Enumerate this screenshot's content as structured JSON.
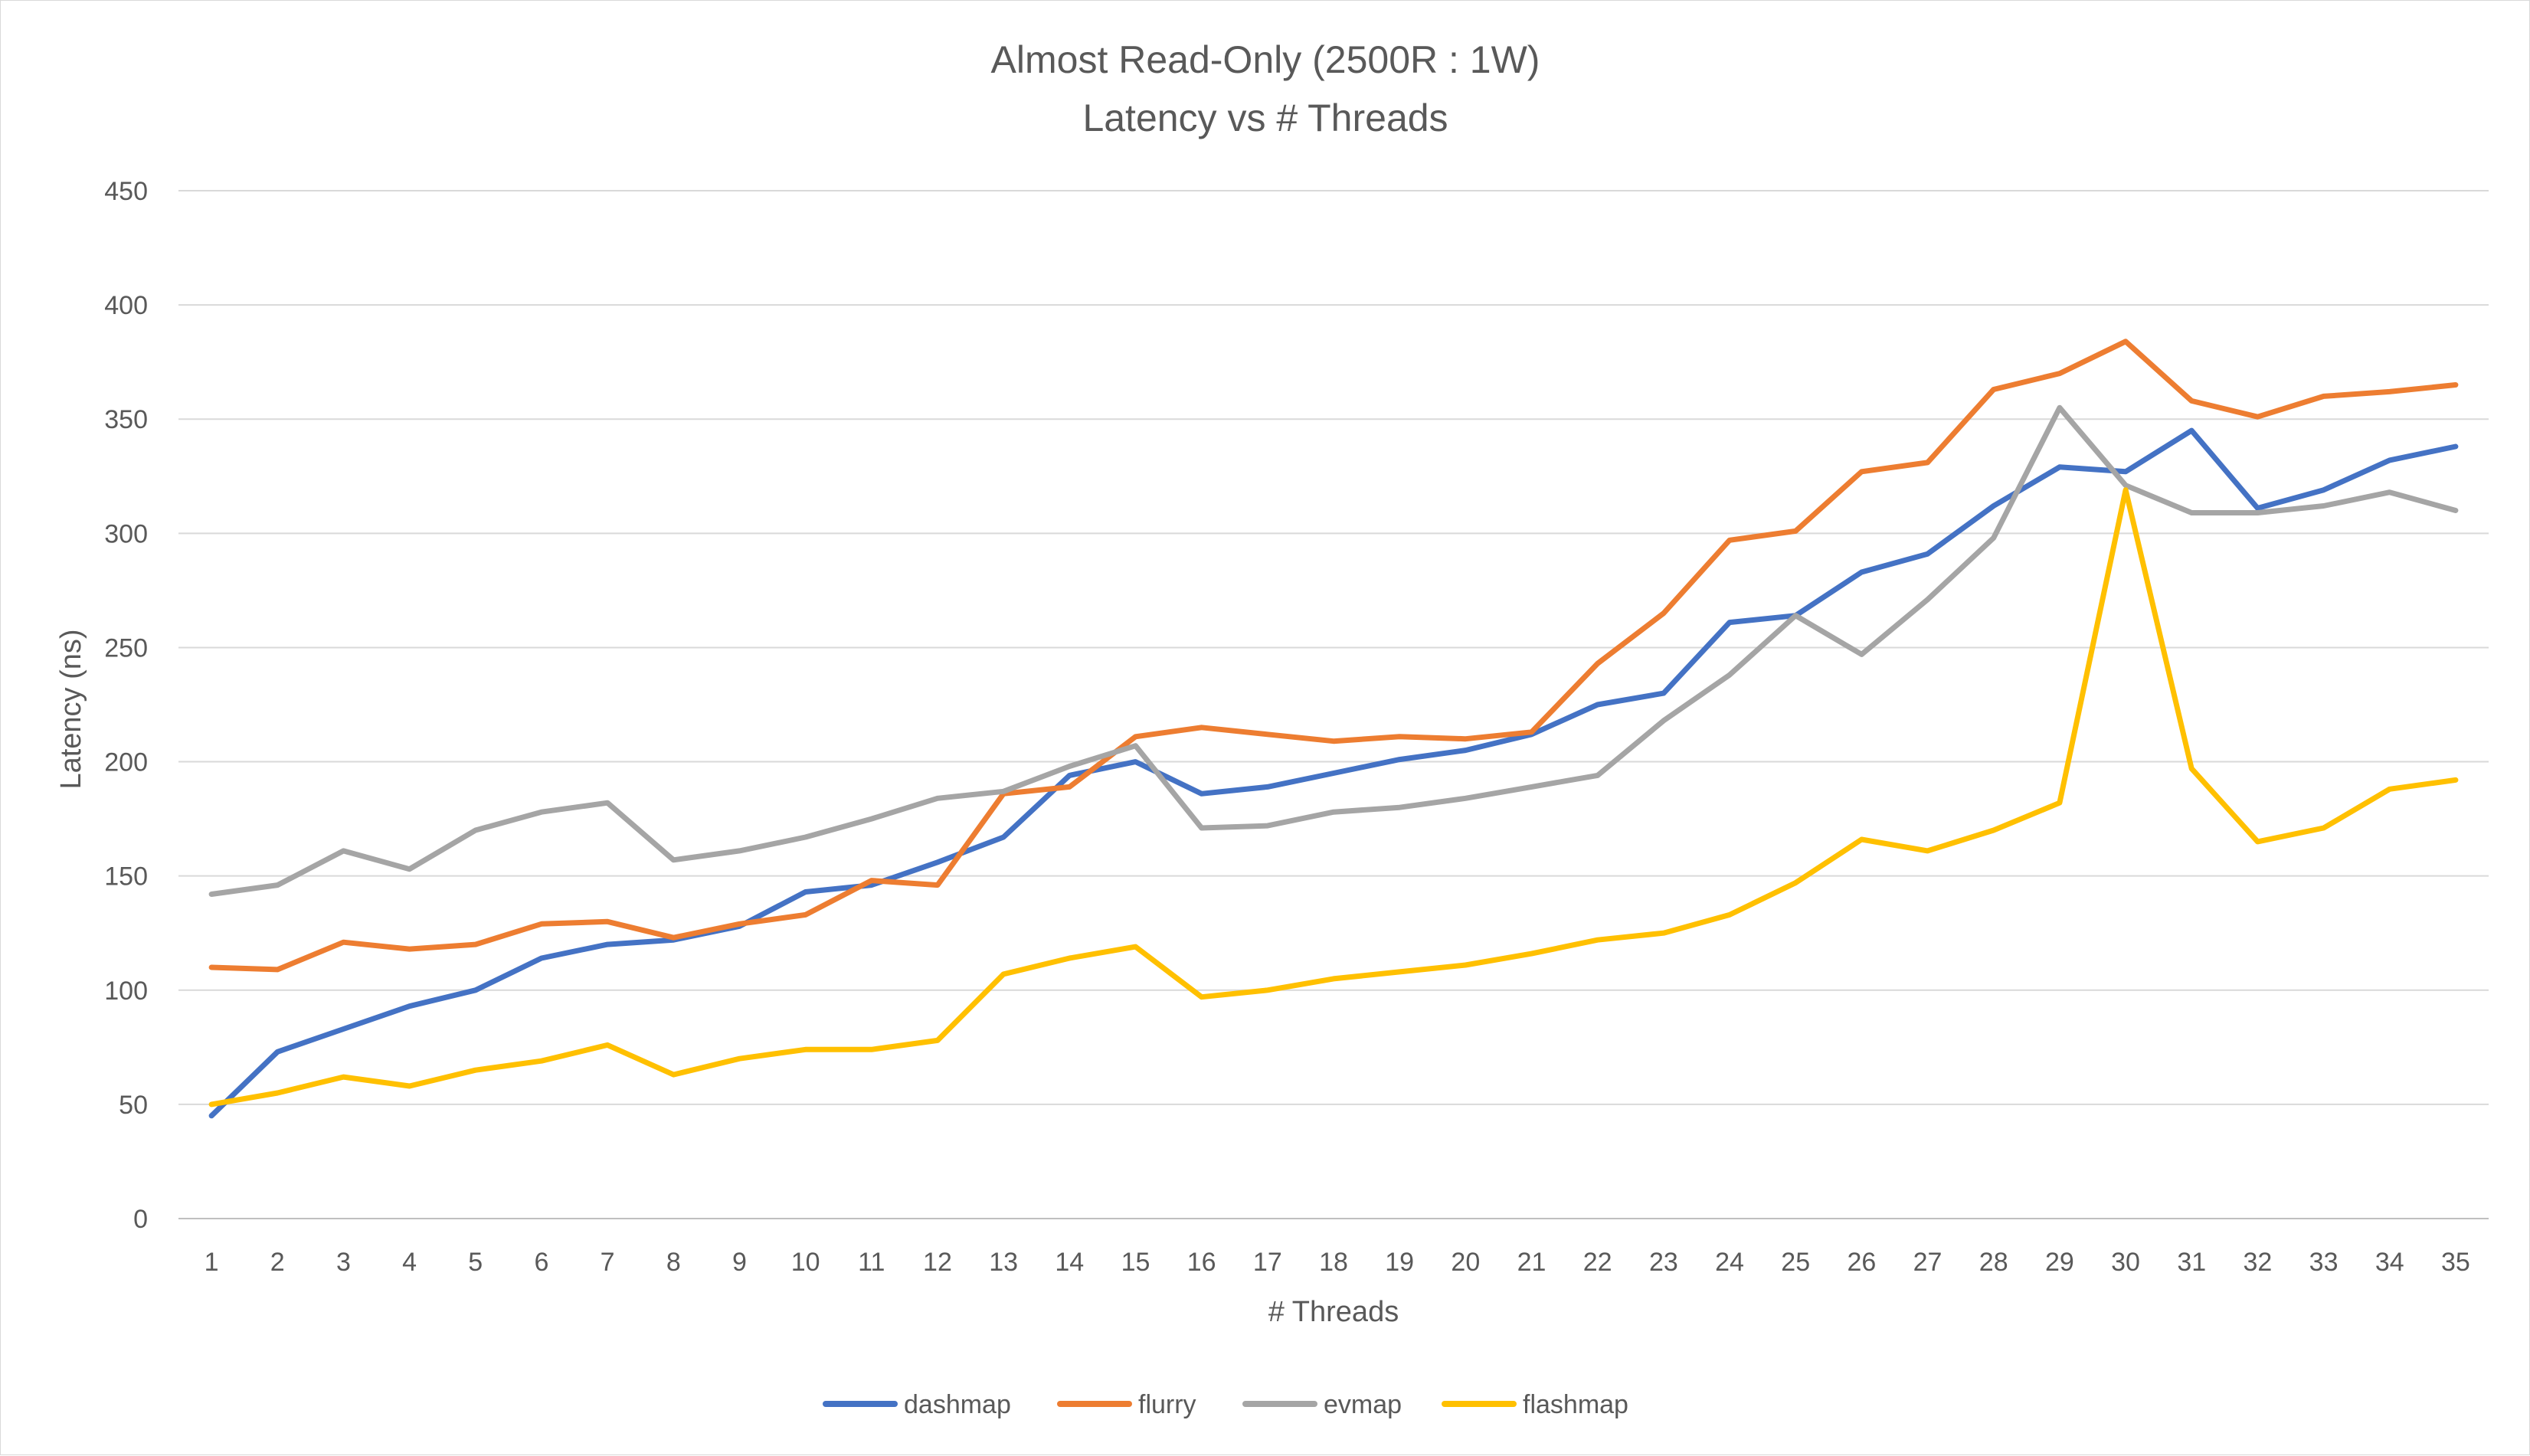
{
  "chart_data": {
    "type": "line",
    "title": "Almost Read-Only (2500R : 1W)",
    "subtitle": "Latency vs # Threads",
    "xlabel": "# Threads",
    "ylabel": "Latency (ns)",
    "ylim": [
      0,
      450
    ],
    "yticks": [
      "0",
      "50",
      "100",
      "150",
      "200",
      "250",
      "300",
      "350",
      "400",
      "450"
    ],
    "grid": true,
    "legend_position": "bottom",
    "categories": [
      "1",
      "2",
      "3",
      "4",
      "5",
      "6",
      "7",
      "8",
      "9",
      "10",
      "11",
      "12",
      "13",
      "14",
      "15",
      "16",
      "17",
      "18",
      "19",
      "20",
      "21",
      "22",
      "23",
      "24",
      "25",
      "26",
      "27",
      "28",
      "29",
      "30",
      "31",
      "32",
      "33",
      "34",
      "35"
    ],
    "series": [
      {
        "name": "dashmap",
        "color": "#4472c4",
        "values": [
          45,
          73,
          83,
          93,
          100,
          114,
          120,
          122,
          128,
          143,
          146,
          156,
          167,
          194,
          200,
          186,
          189,
          195,
          201,
          205,
          212,
          225,
          230,
          261,
          264,
          283,
          291,
          312,
          329,
          327,
          345,
          311,
          319,
          332,
          338
        ]
      },
      {
        "name": "flurry",
        "color": "#ed7d31",
        "values": [
          110,
          109,
          121,
          118,
          120,
          129,
          130,
          123,
          129,
          133,
          148,
          146,
          186,
          189,
          211,
          215,
          212,
          209,
          211,
          210,
          213,
          243,
          265,
          297,
          301,
          327,
          331,
          363,
          370,
          384,
          358,
          351,
          360,
          362,
          365
        ]
      },
      {
        "name": "evmap",
        "color": "#a5a5a5",
        "values": [
          142,
          146,
          161,
          153,
          170,
          178,
          182,
          157,
          161,
          167,
          175,
          184,
          187,
          198,
          207,
          171,
          172,
          178,
          180,
          184,
          189,
          194,
          218,
          238,
          264,
          247,
          271,
          298,
          355,
          321,
          309,
          309,
          312,
          318,
          310
        ]
      },
      {
        "name": "flashmap",
        "color": "#ffc000",
        "values": [
          50,
          55,
          62,
          58,
          65,
          69,
          76,
          63,
          70,
          74,
          74,
          78,
          107,
          114,
          119,
          97,
          100,
          105,
          108,
          111,
          116,
          122,
          125,
          133,
          147,
          166,
          161,
          170,
          182,
          319,
          197,
          165,
          171,
          188,
          192
        ]
      }
    ]
  }
}
